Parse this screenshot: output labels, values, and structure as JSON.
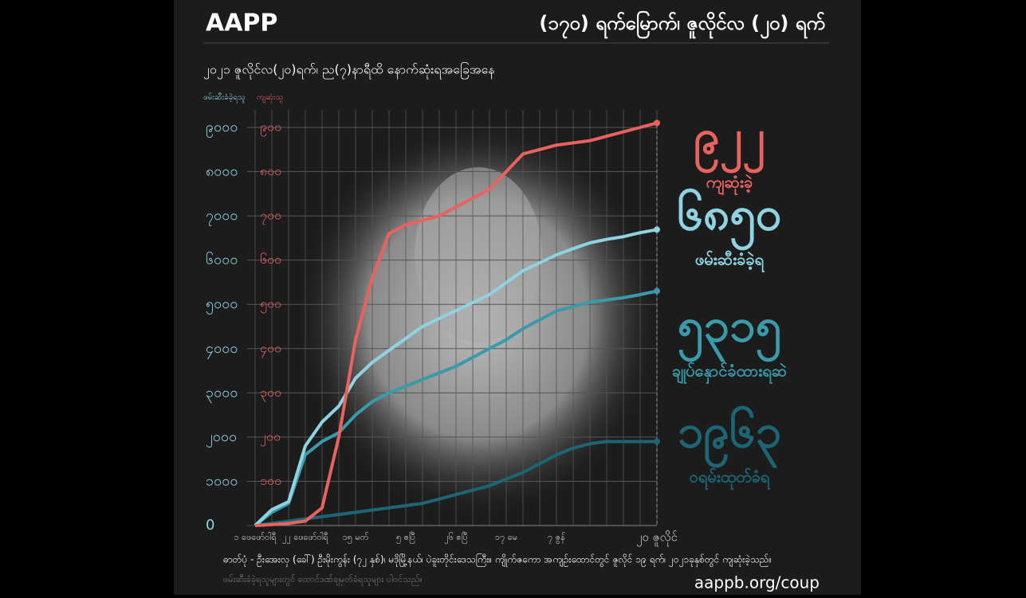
{
  "header": {
    "brand": "AAPP",
    "title": "(၁၇၀) ရက်မြောက်၊ ဇူလိုင်လ (၂၀) ရက်"
  },
  "chart_data": {
    "type": "line",
    "subtitle": "၂၀၂၁ ဇူလိုင်လ(၂၀)ရက်၊ ည(၇)နာရီထိ နောက်ဆုံးရအခြေအနေ",
    "ylabel": "ဖမ်းဆီးခံခဲ့ရသူ",
    "y2label": "ကျဆုံးသူ",
    "categories": [
      "၁ ဖေဖော်ဝါရီ",
      null,
      null,
      "၂၂ ဖေဖော်ဝါရီ",
      null,
      null,
      "၁၅ မတ်",
      null,
      null,
      "၅ ဧပြီ",
      null,
      null,
      "၂၆ ဧပြီ",
      null,
      null,
      "၁၇ မေ",
      null,
      null,
      "၇ ဇွန်",
      null,
      null,
      null,
      null,
      null,
      "၂၀ ဇူလိုင်"
    ],
    "series": [
      {
        "color": "#e8625f",
        "axis": "y2",
        "values": [
          0,
          2,
          5,
          10,
          40,
          200,
          420,
          560,
          660,
          680,
          690,
          700,
          720,
          740,
          760,
          800,
          840,
          850,
          860,
          865,
          870,
          880,
          890,
          900,
          910
        ]
      },
      {
        "color": "#8fd3e3",
        "values": [
          0,
          360,
          540,
          1800,
          2340,
          2700,
          3330,
          3690,
          3960,
          4230,
          4500,
          4680,
          4860,
          5040,
          5220,
          5490,
          5760,
          5940,
          6120,
          6260,
          6390,
          6470,
          6530,
          6620,
          6690
        ]
      },
      {
        "color": "#3a9aaa",
        "values": [
          0,
          300,
          500,
          1600,
          1900,
          2100,
          2500,
          2800,
          3000,
          3150,
          3300,
          3450,
          3600,
          3800,
          4000,
          4200,
          4450,
          4650,
          4850,
          4950,
          5050,
          5100,
          5150,
          5220,
          5300
        ]
      },
      {
        "color": "#1d6575",
        "values": [
          0,
          50,
          100,
          150,
          200,
          250,
          300,
          350,
          400,
          450,
          500,
          600,
          700,
          800,
          900,
          1050,
          1200,
          1400,
          1600,
          1750,
          1850,
          1900,
          1900,
          1900,
          1900
        ]
      }
    ],
    "ylim": [
      0,
      9000
    ],
    "yticks": [
      {
        "value": 0,
        "label": "0"
      },
      {
        "value": 1000,
        "label": "၁၀၀၀"
      },
      {
        "value": 2000,
        "label": "၂၀၀၀"
      },
      {
        "value": 3000,
        "label": "၃၀၀၀"
      },
      {
        "value": 4000,
        "label": "၄၀၀၀"
      },
      {
        "value": 5000,
        "label": "၅၀၀၀"
      },
      {
        "value": 6000,
        "label": "၆၀၀၀"
      },
      {
        "value": 7000,
        "label": "၇၀၀၀"
      },
      {
        "value": 8000,
        "label": "၈၀၀၀"
      },
      {
        "value": 9000,
        "label": "၉၀၀၀"
      }
    ],
    "y2lim": [
      0,
      900
    ],
    "y2ticks": [
      {
        "value": 100,
        "label": "၁၀၀"
      },
      {
        "value": 200,
        "label": "၂၀၀"
      },
      {
        "value": 300,
        "label": "၃၀၀"
      },
      {
        "value": 400,
        "label": "၄၀၀"
      },
      {
        "value": 500,
        "label": "၅၀၀"
      },
      {
        "value": 600,
        "label": "၆၀၀"
      },
      {
        "value": 700,
        "label": "၇၀၀"
      },
      {
        "value": 800,
        "label": "၈၀၀"
      },
      {
        "value": 900,
        "label": "၉၀၀"
      }
    ],
    "grid": true
  },
  "stats": [
    {
      "number": "၉၂၂",
      "label": "ကျဆုံးခဲ့",
      "color": "#e8625f"
    },
    {
      "number": "၆၈၅၀",
      "label": "ဖမ်းဆီးခံခဲ့ရ",
      "color": "#8fd3e3"
    },
    {
      "number": "၅၃၁၅",
      "label": "ချုပ်နှောင်ခံထားရဆဲ",
      "color": "#3a9aaa"
    },
    {
      "number": "၁၉၆၃",
      "label": "ဝရမ်းထုတ်ခံရ",
      "color": "#1d6575"
    }
  ],
  "footer": {
    "caption": "ဓာတ်ပုံ - ဦးအေးလှ (ခေါ်) ဦးမိုးကွန်း (၇၂ နှစ်)၊ မဒိုမြို့နယ်၊ ပဲခူးတိုင်းဒေသကြီး။ ကျိုက်ဇကော အကျဉ်းထောင်တွင် ဇူလိုင် ၁၉ ရက်၊ ၂၀၂၁ခုနှစ်တွင် ကျဆုံးခဲ့သည်။",
    "note": "ဖမ်းဆီးခံခဲ့ရသူများတွင် ထောင်ဒဏ်ချမှတ်ခံရသူများ ပါဝင်သည်။",
    "url": "aappb.org/coup"
  }
}
